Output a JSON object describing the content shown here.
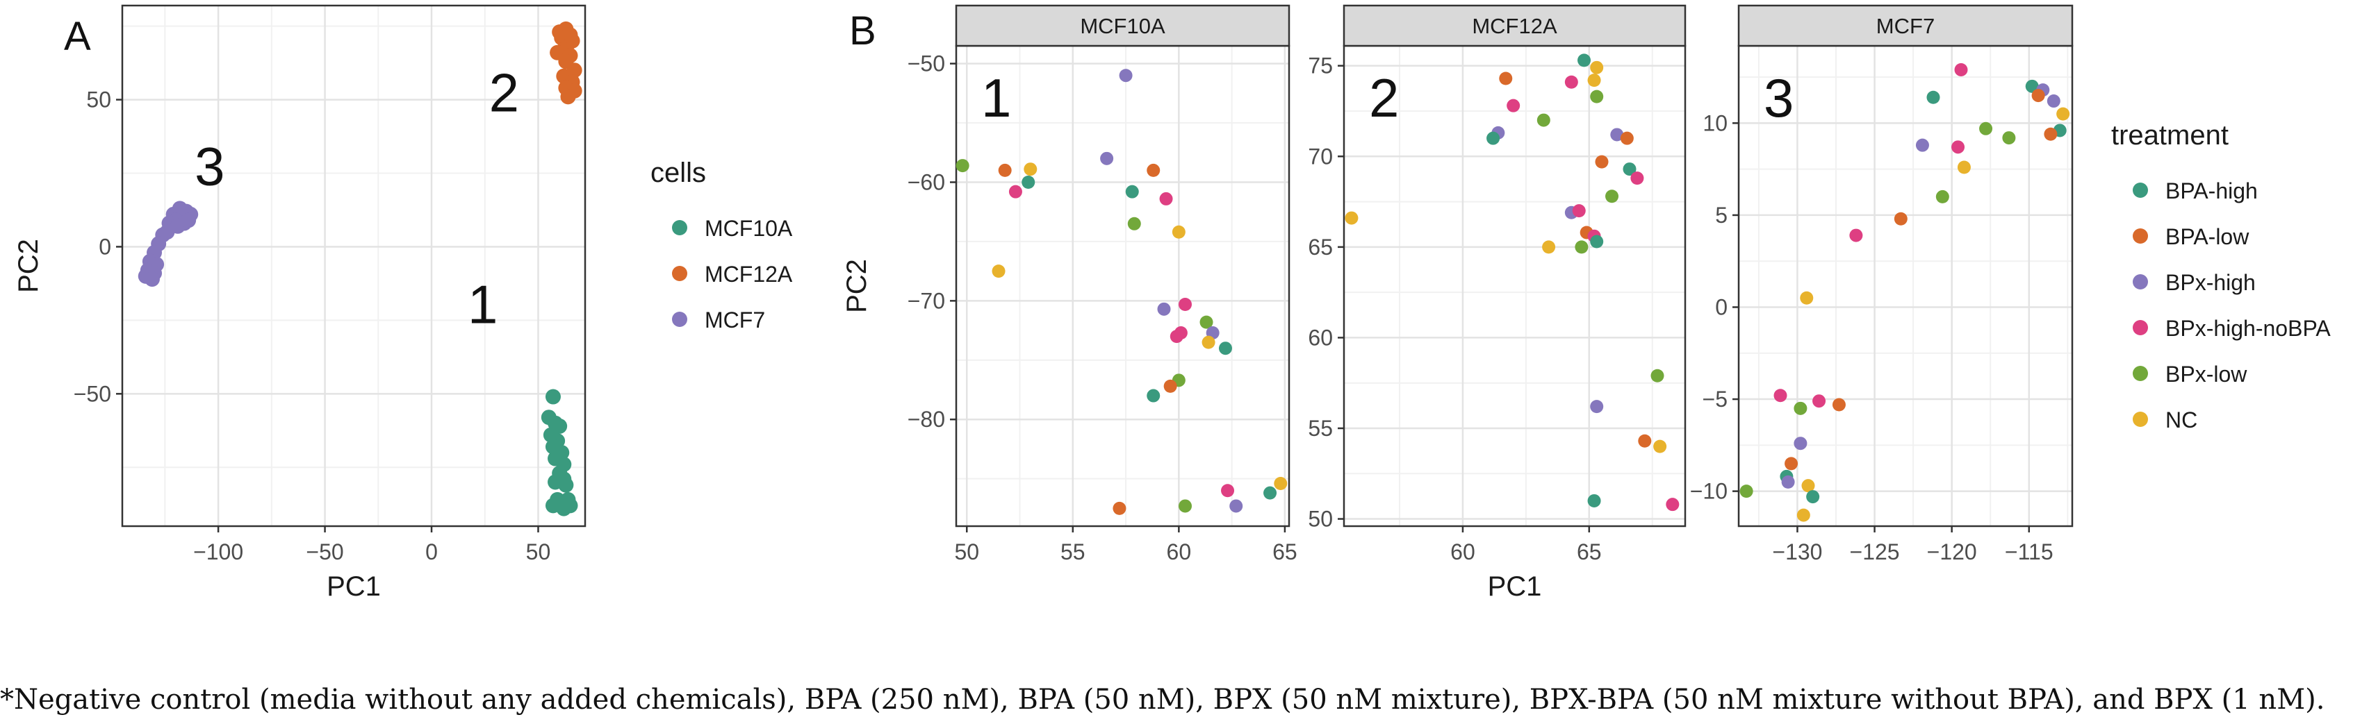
{
  "figure": {
    "panel_a_letter": "A",
    "panel_b_letter": "B",
    "footnote": "*Negative control (media without any added chemicals), BPA (250 nM), BPA (50 nM), BPX (50 nM mixture), BPX-BPA (50 nM mixture without BPA), and BPX (1 nM)."
  },
  "colors": {
    "MCF10A": "#3a9a7e",
    "MCF12A": "#d9692a",
    "MCF7": "#8577bd",
    "BPA-high": "#3a9a7e",
    "BPA-low": "#d9692a",
    "BPx-high": "#8577bd",
    "BPx-high-noBPA": "#de3f82",
    "BPx-low": "#72a83a",
    "NC": "#e8b22c"
  },
  "chart_data": [
    {
      "type": "scatter",
      "panel": "A",
      "xlabel": "PC1",
      "ylabel": "PC2",
      "xlim": [
        -145,
        72
      ],
      "ylim": [
        -95,
        82
      ],
      "xticks": [
        -100,
        -50,
        0,
        50
      ],
      "yticks": [
        -50,
        0,
        50
      ],
      "grid": true,
      "legend": {
        "title": "cells",
        "position": "right",
        "entries": [
          "MCF10A",
          "MCF12A",
          "MCF7"
        ]
      },
      "annotations": [
        {
          "text": "1",
          "x": 24,
          "y": -26
        },
        {
          "text": "2",
          "x": 34,
          "y": 46
        },
        {
          "text": "3",
          "x": -104,
          "y": 21
        }
      ],
      "series": [
        {
          "name": "MCF10A",
          "points": [
            [
              57,
              -51
            ],
            [
              55,
              -58
            ],
            [
              58,
              -60
            ],
            [
              60,
              -61
            ],
            [
              56,
              -64
            ],
            [
              59,
              -66
            ],
            [
              57,
              -68
            ],
            [
              61,
              -70
            ],
            [
              58,
              -72
            ],
            [
              62,
              -74
            ],
            [
              60,
              -77
            ],
            [
              62,
              -79
            ],
            [
              58,
              -80
            ],
            [
              63,
              -81
            ],
            [
              59,
              -86
            ],
            [
              61,
              -87
            ],
            [
              64,
              -86
            ],
            [
              57,
              -88
            ],
            [
              62,
              -89
            ],
            [
              65,
              -88
            ]
          ]
        },
        {
          "name": "MCF12A",
          "points": [
            [
              60,
              73
            ],
            [
              63,
              74
            ],
            [
              65,
              72
            ],
            [
              61,
              71
            ],
            [
              64,
              69
            ],
            [
              66,
              70
            ],
            [
              62,
              67
            ],
            [
              59,
              66
            ],
            [
              65,
              65
            ],
            [
              63,
              63
            ],
            [
              67,
              60
            ],
            [
              62,
              58
            ],
            [
              66,
              56
            ],
            [
              63,
              54
            ],
            [
              67,
              53
            ],
            [
              64,
              51
            ]
          ]
        },
        {
          "name": "MCF7",
          "points": [
            [
              -118,
              13
            ],
            [
              -115,
              12
            ],
            [
              -121,
              11
            ],
            [
              -117,
              10
            ],
            [
              -113,
              11
            ],
            [
              -120,
              9
            ],
            [
              -116,
              8
            ],
            [
              -123,
              8
            ],
            [
              -119,
              7
            ],
            [
              -114,
              9
            ],
            [
              -124,
              5
            ],
            [
              -126,
              4
            ],
            [
              -128,
              1
            ],
            [
              -130,
              -2
            ],
            [
              -132,
              -5
            ],
            [
              -129,
              -6
            ],
            [
              -133,
              -8
            ],
            [
              -130,
              -9
            ],
            [
              -134,
              -10
            ],
            [
              -131,
              -11
            ]
          ]
        }
      ]
    },
    {
      "type": "scatter",
      "panel": "B",
      "facet": "MCF10A",
      "label": "1",
      "xlabel": "",
      "ylabel": "PC2",
      "xlim": [
        49.5,
        65.2
      ],
      "ylim": [
        -89,
        -48.5
      ],
      "xticks": [
        50,
        55,
        60,
        65
      ],
      "yticks": [
        -50,
        -60,
        -70,
        -80
      ],
      "grid": true,
      "points": [
        {
          "x": 57.5,
          "y": -51,
          "t": "BPx-high"
        },
        {
          "x": 56.6,
          "y": -58,
          "t": "BPx-high"
        },
        {
          "x": 49.8,
          "y": -58.6,
          "t": "BPx-low"
        },
        {
          "x": 51.8,
          "y": -59,
          "t": "BPA-low"
        },
        {
          "x": 53.0,
          "y": -58.9,
          "t": "NC"
        },
        {
          "x": 58.8,
          "y": -59,
          "t": "BPA-low"
        },
        {
          "x": 52.3,
          "y": -60.8,
          "t": "BPx-high-noBPA"
        },
        {
          "x": 52.9,
          "y": -60,
          "t": "BPA-high"
        },
        {
          "x": 57.8,
          "y": -60.8,
          "t": "BPA-high"
        },
        {
          "x": 59.4,
          "y": -61.4,
          "t": "BPx-high-noBPA"
        },
        {
          "x": 57.9,
          "y": -63.5,
          "t": "BPx-low"
        },
        {
          "x": 60.0,
          "y": -64.2,
          "t": "NC"
        },
        {
          "x": 51.5,
          "y": -67.5,
          "t": "NC"
        },
        {
          "x": 60.3,
          "y": -70.3,
          "t": "BPx-high-noBPA"
        },
        {
          "x": 59.3,
          "y": -70.7,
          "t": "BPx-high"
        },
        {
          "x": 61.3,
          "y": -71.8,
          "t": "BPx-low"
        },
        {
          "x": 61.6,
          "y": -72.7,
          "t": "BPx-high"
        },
        {
          "x": 60.1,
          "y": -72.7,
          "t": "BPx-high-noBPA"
        },
        {
          "x": 59.9,
          "y": -73.0,
          "t": "BPx-high-noBPA"
        },
        {
          "x": 61.4,
          "y": -73.5,
          "t": "NC"
        },
        {
          "x": 62.2,
          "y": -74.0,
          "t": "BPA-high"
        },
        {
          "x": 60.0,
          "y": -76.7,
          "t": "BPx-low"
        },
        {
          "x": 59.6,
          "y": -77.2,
          "t": "BPA-low"
        },
        {
          "x": 58.8,
          "y": -78.0,
          "t": "BPA-high"
        },
        {
          "x": 64.8,
          "y": -85.4,
          "t": "NC"
        },
        {
          "x": 62.3,
          "y": -86.0,
          "t": "BPx-high-noBPA"
        },
        {
          "x": 64.3,
          "y": -86.2,
          "t": "BPA-high"
        },
        {
          "x": 57.2,
          "y": -87.5,
          "t": "BPA-low"
        },
        {
          "x": 60.3,
          "y": -87.3,
          "t": "BPx-low"
        },
        {
          "x": 62.7,
          "y": -87.3,
          "t": "BPx-high"
        }
      ]
    },
    {
      "type": "scatter",
      "panel": "B",
      "facet": "MCF12A",
      "label": "2",
      "xlabel": "PC1",
      "ylabel": "",
      "xlim": [
        55.3,
        68.8
      ],
      "ylim": [
        49.6,
        76.1
      ],
      "xticks": [
        60,
        65
      ],
      "yticks": [
        75,
        70,
        65,
        60,
        55,
        50
      ],
      "grid": true,
      "points": [
        {
          "x": 64.8,
          "y": 75.3,
          "t": "BPA-high"
        },
        {
          "x": 65.3,
          "y": 74.9,
          "t": "NC"
        },
        {
          "x": 61.7,
          "y": 74.3,
          "t": "BPA-low"
        },
        {
          "x": 64.3,
          "y": 74.1,
          "t": "BPx-high-noBPA"
        },
        {
          "x": 65.2,
          "y": 74.2,
          "t": "NC"
        },
        {
          "x": 65.3,
          "y": 73.3,
          "t": "BPx-low"
        },
        {
          "x": 62.0,
          "y": 72.8,
          "t": "BPx-high-noBPA"
        },
        {
          "x": 63.2,
          "y": 72.0,
          "t": "BPx-low"
        },
        {
          "x": 61.4,
          "y": 71.3,
          "t": "BPx-high"
        },
        {
          "x": 61.2,
          "y": 71.0,
          "t": "BPA-high"
        },
        {
          "x": 66.1,
          "y": 71.2,
          "t": "BPx-high"
        },
        {
          "x": 66.5,
          "y": 71.0,
          "t": "BPA-low"
        },
        {
          "x": 65.5,
          "y": 69.7,
          "t": "BPA-low"
        },
        {
          "x": 66.6,
          "y": 69.3,
          "t": "BPA-high"
        },
        {
          "x": 66.9,
          "y": 68.8,
          "t": "BPx-high-noBPA"
        },
        {
          "x": 65.9,
          "y": 67.8,
          "t": "BPx-low"
        },
        {
          "x": 64.3,
          "y": 66.9,
          "t": "BPx-high"
        },
        {
          "x": 64.6,
          "y": 67.0,
          "t": "BPx-high-noBPA"
        },
        {
          "x": 55.6,
          "y": 66.6,
          "t": "NC"
        },
        {
          "x": 64.9,
          "y": 65.8,
          "t": "BPA-low"
        },
        {
          "x": 65.2,
          "y": 65.6,
          "t": "BPx-high-noBPA"
        },
        {
          "x": 65.3,
          "y": 65.3,
          "t": "BPA-high"
        },
        {
          "x": 63.4,
          "y": 65.0,
          "t": "NC"
        },
        {
          "x": 64.7,
          "y": 65.0,
          "t": "BPx-low"
        },
        {
          "x": 67.7,
          "y": 57.9,
          "t": "BPx-low"
        },
        {
          "x": 65.3,
          "y": 56.2,
          "t": "BPx-high"
        },
        {
          "x": 67.2,
          "y": 54.3,
          "t": "BPA-low"
        },
        {
          "x": 67.8,
          "y": 54.0,
          "t": "NC"
        },
        {
          "x": 65.2,
          "y": 51.0,
          "t": "BPA-high"
        },
        {
          "x": 68.3,
          "y": 50.8,
          "t": "BPx-high-noBPA"
        }
      ]
    },
    {
      "type": "scatter",
      "panel": "B",
      "facet": "MCF7",
      "label": "3",
      "xlabel": "",
      "ylabel": "",
      "xlim": [
        -133.8,
        -112.2
      ],
      "ylim": [
        -11.9,
        14.2
      ],
      "xticks": [
        -130,
        -125,
        -120,
        -115
      ],
      "yticks": [
        10,
        5,
        0,
        -5,
        -10
      ],
      "grid": true,
      "legend": {
        "title": "treatment",
        "position": "right",
        "entries": [
          "BPA-high",
          "BPA-low",
          "BPx-high",
          "BPx-high-noBPA",
          "BPx-low",
          "NC"
        ]
      },
      "points": [
        {
          "x": -119.4,
          "y": 12.9,
          "t": "BPx-high-noBPA"
        },
        {
          "x": -114.8,
          "y": 12.0,
          "t": "BPA-high"
        },
        {
          "x": -114.1,
          "y": 11.8,
          "t": "BPx-high"
        },
        {
          "x": -114.4,
          "y": 11.5,
          "t": "BPA-low"
        },
        {
          "x": -121.2,
          "y": 11.4,
          "t": "BPA-high"
        },
        {
          "x": -113.4,
          "y": 11.2,
          "t": "BPx-high"
        },
        {
          "x": -112.8,
          "y": 10.5,
          "t": "NC"
        },
        {
          "x": -117.8,
          "y": 9.7,
          "t": "BPx-low"
        },
        {
          "x": -113.0,
          "y": 9.6,
          "t": "BPA-high"
        },
        {
          "x": -113.6,
          "y": 9.4,
          "t": "BPA-low"
        },
        {
          "x": -116.3,
          "y": 9.2,
          "t": "BPx-low"
        },
        {
          "x": -121.9,
          "y": 8.8,
          "t": "BPx-high"
        },
        {
          "x": -119.6,
          "y": 8.7,
          "t": "BPx-high-noBPA"
        },
        {
          "x": -119.2,
          "y": 7.6,
          "t": "NC"
        },
        {
          "x": -120.6,
          "y": 6.0,
          "t": "BPx-low"
        },
        {
          "x": -123.3,
          "y": 4.8,
          "t": "BPA-low"
        },
        {
          "x": -126.2,
          "y": 3.9,
          "t": "BPx-high-noBPA"
        },
        {
          "x": -129.4,
          "y": 0.5,
          "t": "NC"
        },
        {
          "x": -131.1,
          "y": -4.8,
          "t": "BPx-high-noBPA"
        },
        {
          "x": -128.6,
          "y": -5.1,
          "t": "BPx-high-noBPA"
        },
        {
          "x": -127.3,
          "y": -5.3,
          "t": "BPA-low"
        },
        {
          "x": -129.8,
          "y": -5.5,
          "t": "BPx-low"
        },
        {
          "x": -129.8,
          "y": -7.4,
          "t": "BPx-high"
        },
        {
          "x": -130.4,
          "y": -8.5,
          "t": "BPA-low"
        },
        {
          "x": -130.7,
          "y": -9.2,
          "t": "BPA-high"
        },
        {
          "x": -130.6,
          "y": -9.5,
          "t": "BPx-high"
        },
        {
          "x": -129.3,
          "y": -9.7,
          "t": "NC"
        },
        {
          "x": -133.3,
          "y": -10.0,
          "t": "BPx-low"
        },
        {
          "x": -129.0,
          "y": -10.3,
          "t": "BPA-high"
        },
        {
          "x": -129.6,
          "y": -11.3,
          "t": "NC"
        }
      ]
    }
  ]
}
